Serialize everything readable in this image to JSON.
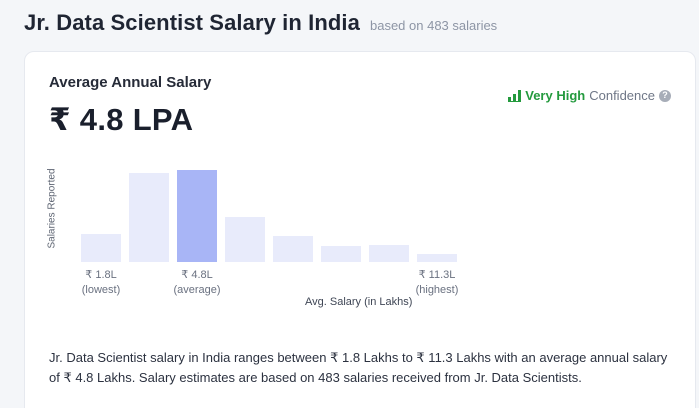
{
  "header": {
    "title": "Jr. Data Scientist Salary in India",
    "subtitle": "based on 483 salaries"
  },
  "card": {
    "title": "Average Annual Salary",
    "value": "₹ 4.8 LPA",
    "confidence": {
      "level": "Very High",
      "word": "Confidence",
      "icon": "signal-bars-icon",
      "info_icon": "?"
    }
  },
  "chart_data": {
    "type": "bar",
    "ylabel": "Salaries Reported",
    "xlabel": "Avg. Salary (in Lakhs)",
    "relative_values": [
      0.3,
      0.95,
      0.98,
      0.48,
      0.28,
      0.17,
      0.18,
      0.08
    ],
    "highlight_index": 2,
    "bar_color": "#e8ebfb",
    "highlight_color": "#a8b5f6",
    "ticks": [
      {
        "value": "₹ 1.8L",
        "caption": "(lowest)",
        "bar_index": 0
      },
      {
        "value": "₹ 4.8L",
        "caption": "(average)",
        "bar_index": 2
      },
      {
        "value": "₹ 11.3L",
        "caption": "(highest)",
        "bar_index": 7
      }
    ]
  },
  "description": "Jr. Data Scientist salary in India ranges between ₹ 1.8 Lakhs to ₹ 11.3 Lakhs with an average annual salary of ₹ 4.8 Lakhs. Salary estimates are based on 483 salaries received from Jr. Data Scientists."
}
